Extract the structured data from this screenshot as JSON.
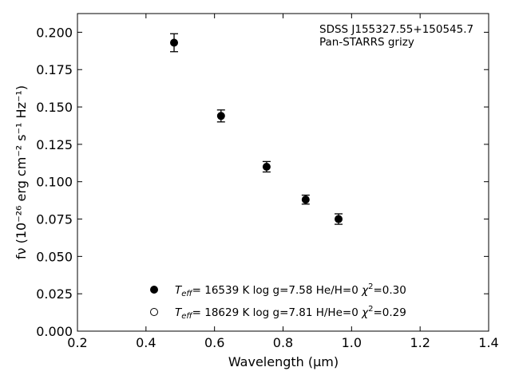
{
  "chart_data": {
    "type": "scatter",
    "title": "",
    "xlabel": "Wavelength (μm)",
    "ylabel": "fν (10⁻²⁶ erg cm⁻² s⁻¹ Hz⁻¹)",
    "xlim": [
      0.2,
      1.4
    ],
    "ylim": [
      0.0,
      0.2125
    ],
    "x_ticks": [
      "0.2",
      "0.4",
      "0.6",
      "0.8",
      "1.0",
      "1.2",
      "1.4"
    ],
    "y_ticks": [
      "0.000",
      "0.025",
      "0.050",
      "0.075",
      "0.100",
      "0.125",
      "0.150",
      "0.175",
      "0.200"
    ],
    "grid": false,
    "annotation": [
      "SDSS J155327.55+150545.7",
      "Pan-STARRS grizy"
    ],
    "series": [
      {
        "marker": "filled-circle",
        "color": "#000000",
        "x": [
          0.482,
          0.619,
          0.752,
          0.866,
          0.962
        ],
        "y": [
          0.193,
          0.144,
          0.11,
          0.088,
          0.075
        ],
        "yerr": [
          0.006,
          0.004,
          0.0035,
          0.003,
          0.0035
        ]
      }
    ],
    "legend": {
      "placement": "lower-center",
      "entries": [
        {
          "marker": "filled-circle",
          "teff": "16539 K",
          "logg": "log g=7.58",
          "comp": "He/H=0",
          "chi2": "=0.30"
        },
        {
          "marker": "open-circle",
          "teff": "18629 K",
          "logg": "log g=7.81",
          "comp": "H/He=0",
          "chi2": "=0.29"
        }
      ]
    }
  }
}
